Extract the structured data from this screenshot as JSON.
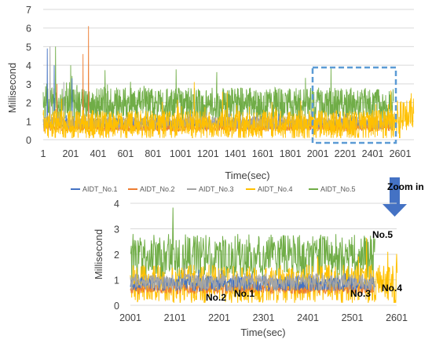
{
  "chart_data": [
    {
      "type": "line",
      "title": "",
      "xlabel": "Time(sec)",
      "ylabel": "Millisecond",
      "xlim": [
        1,
        2701
      ],
      "ylim": [
        0,
        7
      ],
      "x_ticks": [
        "1",
        "201",
        "401",
        "601",
        "801",
        "1001",
        "1201",
        "1401",
        "1601",
        "1801",
        "2001",
        "2201",
        "2401",
        "2601"
      ],
      "y_ticks": [
        "0",
        "1",
        "2",
        "3",
        "4",
        "5",
        "6",
        "7"
      ],
      "grid": "horizontal",
      "legend": "bottom",
      "zoom_region": {
        "x": [
          2001,
          2601
        ],
        "y": [
          0,
          3.9
        ]
      },
      "series": [
        {
          "name": "AIDT_No.1",
          "color": "#4472C4",
          "base": 0.85,
          "spread": 0.3,
          "peaks": [
            [
              31,
              4.9
            ],
            [
              81,
              4.0
            ],
            [
              211,
              3.3
            ]
          ],
          "values": []
        },
        {
          "name": "AIDT_No.2",
          "color": "#ED7D31",
          "base": 0.65,
          "spread": 0.2,
          "peaks": [
            [
              331,
              6.1
            ],
            [
              101,
              3.0
            ],
            [
              291,
              4.6
            ]
          ],
          "values": []
        },
        {
          "name": "AIDT_No.3",
          "color": "#A5A5A5",
          "base": 0.9,
          "spread": 0.35,
          "peaks": [
            [
              51,
              5.0
            ],
            [
              151,
              3.1
            ]
          ],
          "values": []
        },
        {
          "name": "AIDT_No.4",
          "color": "#FFC000",
          "base": 0.8,
          "spread": 0.8,
          "peaks": [
            [
              1101,
              3.1
            ],
            [
              2681,
              2.5
            ]
          ],
          "values": []
        },
        {
          "name": "AIDT_No.5",
          "color": "#70AD47",
          "base": 1.9,
          "spread": 0.9,
          "peaks": [
            [
              91,
              5.0
            ],
            [
              201,
              4.0
            ]
          ],
          "values": []
        }
      ]
    },
    {
      "type": "line",
      "title": "",
      "xlabel": "Time(sec)",
      "ylabel": "Millisecond",
      "xlim": [
        2001,
        2601
      ],
      "ylim": [
        0,
        4
      ],
      "x_ticks": [
        "2001",
        "2101",
        "2201",
        "2301",
        "2401",
        "2501",
        "2601"
      ],
      "y_ticks": [
        "0",
        "1",
        "2",
        "3",
        "4"
      ],
      "grid": "horizontal",
      "annotations": [
        "No.1",
        "No.2",
        "No.3",
        "No.4",
        "No.5"
      ],
      "zoom_label": "Zoom in"
    }
  ],
  "annotations": {
    "no1": "No.1",
    "no2": "No.2",
    "no3": "No.3",
    "no4": "No.4",
    "no5": "No.5"
  },
  "zoom_label": "Zoom in",
  "colors": {
    "no1": "#4472C4",
    "no2": "#ED7D31",
    "no3": "#A5A5A5",
    "no4": "#FFC000",
    "no5": "#70AD47",
    "zoom_box": "#5B9BD5",
    "arrow": "#4472C4"
  }
}
